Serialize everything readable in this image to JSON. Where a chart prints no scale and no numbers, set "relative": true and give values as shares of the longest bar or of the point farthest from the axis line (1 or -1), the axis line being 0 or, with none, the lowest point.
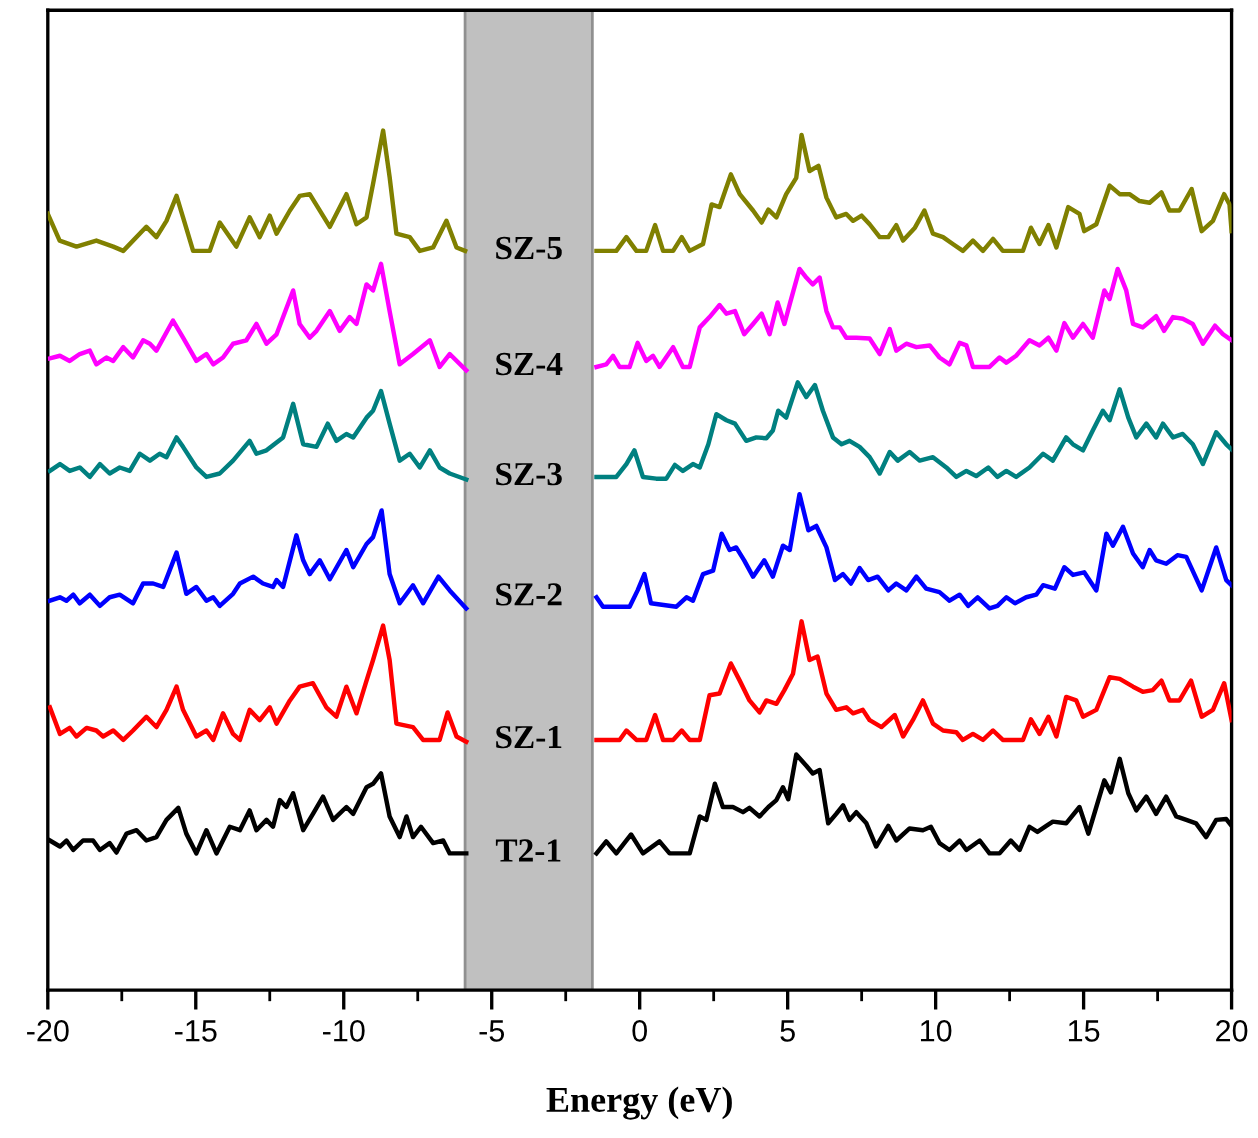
{
  "chart_data": {
    "type": "line",
    "relative": true,
    "xlabel": "Energy (eV)",
    "xlim": [
      -20,
      20
    ],
    "xticks": [
      -20,
      {
        "value": -17.5,
        "label": null
      },
      -15,
      {
        "value": -12.5,
        "label": null
      },
      -10,
      {
        "value": -7.5,
        "label": null
      },
      -5,
      {
        "value": -2.5,
        "label": null
      },
      0,
      {
        "value": 2.5,
        "label": null
      },
      5,
      {
        "value": 7.5,
        "label": null
      },
      10,
      {
        "value": 12.5,
        "label": null
      },
      15,
      {
        "value": 17.5,
        "label": null
      },
      20
    ],
    "grid": false,
    "legend": false,
    "marker": "none",
    "line_style": "solid",
    "bands": [
      {
        "axis": "x",
        "from": -5.9,
        "to": -1.6,
        "color": "#c0c0c0"
      }
    ],
    "series": [
      {
        "name": "SZ-5",
        "color": "#808000",
        "x": [
          -20.0,
          -19.6,
          -19.03,
          -18.36,
          -17.79,
          -17.45,
          -16.67,
          -16.33,
          -15.99,
          -15.65,
          -15.43,
          -15.09,
          -14.53,
          -14.19,
          -13.63,
          -13.18,
          -12.84,
          -12.5,
          -12.27,
          -11.82,
          -11.49,
          -11.15,
          -10.47,
          -9.91,
          -9.57,
          -9.23,
          -9.01,
          -8.67,
          -8.45,
          -8.22,
          -7.77,
          -7.43,
          -6.98,
          -6.53,
          -6.19,
          -5.9,
          -3.75,
          -1.46,
          -0.79,
          -0.45,
          -0.11,
          0.22,
          0.52,
          0.79,
          1.13,
          1.42,
          1.69,
          2.14,
          2.43,
          2.7,
          3.08,
          3.38,
          3.83,
          4.12,
          4.35,
          4.62,
          4.95,
          5.29,
          5.47,
          5.74,
          6.04,
          6.31,
          6.64,
          6.98,
          7.21,
          7.5,
          7.77,
          8.11,
          8.4,
          8.67,
          8.9,
          9.3,
          9.62,
          9.91,
          10.25,
          10.58,
          10.92,
          11.26,
          11.6,
          11.94,
          12.27,
          12.95,
          13.22,
          13.51,
          13.81,
          14.08,
          14.48,
          14.86,
          15.02,
          15.43,
          15.88,
          16.22,
          16.55,
          16.89,
          17.23,
          17.63,
          17.9,
          18.24,
          18.65,
          18.99,
          19.37,
          19.75,
          19.93,
          20.0
        ],
        "values": [
          0.903,
          0.872,
          0.865,
          0.872,
          0.865,
          0.86,
          0.888,
          0.876,
          0.895,
          0.924,
          0.899,
          0.86,
          0.86,
          0.893,
          0.865,
          0.899,
          0.876,
          0.901,
          0.88,
          0.907,
          0.924,
          0.926,
          0.888,
          0.926,
          0.891,
          0.899,
          0.938,
          1.0,
          0.946,
          0.88,
          0.876,
          0.86,
          0.864,
          0.895,
          0.864,
          0.86,
          null,
          0.86,
          0.86,
          0.876,
          0.86,
          0.86,
          0.89,
          0.86,
          0.86,
          0.876,
          0.86,
          0.868,
          0.914,
          0.911,
          0.949,
          0.926,
          0.907,
          0.893,
          0.908,
          0.899,
          0.926,
          0.945,
          0.995,
          0.953,
          0.959,
          0.922,
          0.899,
          0.903,
          0.895,
          0.901,
          0.891,
          0.876,
          0.876,
          0.89,
          0.872,
          0.887,
          0.907,
          0.88,
          0.876,
          0.868,
          0.86,
          0.872,
          0.86,
          0.874,
          0.86,
          0.86,
          0.887,
          0.868,
          0.89,
          0.864,
          0.911,
          0.903,
          0.883,
          0.891,
          0.936,
          0.926,
          0.926,
          0.918,
          0.916,
          0.928,
          0.907,
          0.907,
          0.932,
          0.883,
          0.895,
          0.926,
          0.914,
          0.883
        ]
      },
      {
        "name": "SZ-4",
        "color": "#ff00ff",
        "x": [
          -19.93,
          -19.59,
          -19.26,
          -18.92,
          -18.58,
          -18.36,
          -18.02,
          -17.79,
          -17.45,
          -17.12,
          -16.78,
          -16.55,
          -16.33,
          -15.77,
          -15.43,
          -14.98,
          -14.64,
          -14.41,
          -14.08,
          -13.74,
          -13.29,
          -12.95,
          -12.61,
          -12.27,
          -11.71,
          -11.49,
          -11.15,
          -10.92,
          -10.47,
          -10.14,
          -9.8,
          -9.57,
          -9.23,
          -9.01,
          -8.74,
          -8.45,
          -8.11,
          -7.66,
          -7.09,
          -6.76,
          -6.42,
          -5.86,
          -3.75,
          -1.46,
          -1.13,
          -0.9,
          -0.68,
          -0.34,
          -0.07,
          0.22,
          0.45,
          0.67,
          1.13,
          1.46,
          1.69,
          2.03,
          2.36,
          2.7,
          2.93,
          3.22,
          3.53,
          3.83,
          4.12,
          4.39,
          4.66,
          4.89,
          5.07,
          5.4,
          5.63,
          5.85,
          6.08,
          6.31,
          6.53,
          6.76,
          6.98,
          7.32,
          7.77,
          8.11,
          8.45,
          8.67,
          9.01,
          9.35,
          9.8,
          10.13,
          10.47,
          10.81,
          11.04,
          11.26,
          11.82,
          12.16,
          12.39,
          12.72,
          13.17,
          13.51,
          13.81,
          14.08,
          14.35,
          14.64,
          14.98,
          15.31,
          15.7,
          15.88,
          16.15,
          16.44,
          16.67,
          17.0,
          17.45,
          17.72,
          18.02,
          18.35,
          18.69,
          19.03,
          19.44,
          19.71,
          20.0
        ],
        "values": [
          0.735,
          0.738,
          0.732,
          0.74,
          0.744,
          0.728,
          0.736,
          0.732,
          0.748,
          0.736,
          0.756,
          0.752,
          0.744,
          0.779,
          0.759,
          0.732,
          0.74,
          0.728,
          0.736,
          0.752,
          0.756,
          0.775,
          0.752,
          0.763,
          0.814,
          0.775,
          0.759,
          0.767,
          0.79,
          0.767,
          0.783,
          0.775,
          0.821,
          0.814,
          0.845,
          0.79,
          0.728,
          0.74,
          0.756,
          0.725,
          0.74,
          0.721,
          null,
          0.725,
          0.728,
          0.738,
          0.725,
          0.725,
          0.753,
          0.732,
          0.738,
          0.725,
          0.748,
          0.725,
          0.725,
          0.771,
          0.783,
          0.797,
          0.787,
          0.79,
          0.763,
          0.775,
          0.787,
          0.763,
          0.8,
          0.775,
          0.798,
          0.839,
          0.829,
          0.821,
          0.829,
          0.79,
          0.771,
          0.771,
          0.759,
          0.759,
          0.758,
          0.74,
          0.769,
          0.744,
          0.752,
          0.748,
          0.75,
          0.736,
          0.728,
          0.753,
          0.75,
          0.725,
          0.725,
          0.736,
          0.73,
          0.738,
          0.756,
          0.75,
          0.759,
          0.744,
          0.776,
          0.759,
          0.775,
          0.759,
          0.814,
          0.804,
          0.839,
          0.814,
          0.775,
          0.771,
          0.784,
          0.767,
          0.783,
          0.781,
          0.775,
          0.752,
          0.773,
          0.763,
          0.756
        ]
      },
      {
        "name": "SZ-3",
        "color": "#008080",
        "x": [
          -19.93,
          -19.59,
          -19.26,
          -18.92,
          -18.58,
          -18.24,
          -17.91,
          -17.57,
          -17.23,
          -16.89,
          -16.55,
          -16.22,
          -15.99,
          -15.65,
          -15.43,
          -14.98,
          -14.64,
          -14.19,
          -13.74,
          -13.18,
          -12.95,
          -12.61,
          -12.05,
          -11.71,
          -11.37,
          -10.92,
          -10.54,
          -10.25,
          -9.91,
          -9.68,
          -9.23,
          -9.01,
          -8.74,
          -8.45,
          -8.11,
          -7.77,
          -7.43,
          -7.09,
          -6.76,
          -6.42,
          -5.86,
          -3.75,
          -1.46,
          -0.79,
          -0.45,
          -0.18,
          0.11,
          0.56,
          0.9,
          1.19,
          1.46,
          1.8,
          2.03,
          2.32,
          2.59,
          2.93,
          3.22,
          3.6,
          3.94,
          4.28,
          4.5,
          4.68,
          4.95,
          5.34,
          5.63,
          5.92,
          6.19,
          6.53,
          6.82,
          7.09,
          7.43,
          7.77,
          8.11,
          8.45,
          8.72,
          9.12,
          9.46,
          9.91,
          10.36,
          10.7,
          11.04,
          11.37,
          11.78,
          12.09,
          12.39,
          12.72,
          13.17,
          13.63,
          13.96,
          14.41,
          14.64,
          14.98,
          15.31,
          15.65,
          15.88,
          16.22,
          16.51,
          16.78,
          17.12,
          17.45,
          17.68,
          18.02,
          18.35,
          18.69,
          19.03,
          19.48,
          19.82,
          20.0
        ],
        "values": [
          0.604,
          0.612,
          0.604,
          0.608,
          0.597,
          0.612,
          0.601,
          0.608,
          0.604,
          0.624,
          0.616,
          0.624,
          0.62,
          0.643,
          0.632,
          0.608,
          0.597,
          0.601,
          0.616,
          0.639,
          0.624,
          0.628,
          0.643,
          0.682,
          0.635,
          0.632,
          0.659,
          0.639,
          0.647,
          0.643,
          0.666,
          0.674,
          0.697,
          0.659,
          0.616,
          0.624,
          0.608,
          0.628,
          0.608,
          0.601,
          0.594,
          null,
          0.597,
          0.597,
          0.612,
          0.628,
          0.597,
          0.595,
          0.595,
          0.611,
          0.604,
          0.612,
          0.608,
          0.635,
          0.67,
          0.663,
          0.659,
          0.639,
          0.643,
          0.642,
          0.651,
          0.674,
          0.666,
          0.707,
          0.69,
          0.704,
          0.674,
          0.643,
          0.635,
          0.639,
          0.632,
          0.62,
          0.601,
          0.626,
          0.616,
          0.626,
          0.616,
          0.62,
          0.608,
          0.597,
          0.604,
          0.598,
          0.608,
          0.597,
          0.604,
          0.597,
          0.608,
          0.624,
          0.616,
          0.643,
          0.635,
          0.628,
          0.651,
          0.674,
          0.663,
          0.699,
          0.666,
          0.643,
          0.659,
          0.643,
          0.659,
          0.643,
          0.647,
          0.635,
          0.612,
          0.649,
          0.635,
          0.629
        ]
      },
      {
        "name": "SZ-2",
        "color": "#0000ff",
        "x": [
          -19.93,
          -19.59,
          -19.37,
          -19.14,
          -18.92,
          -18.58,
          -18.24,
          -17.91,
          -17.57,
          -17.12,
          -16.78,
          -16.44,
          -16.1,
          -15.65,
          -15.32,
          -14.98,
          -14.64,
          -14.41,
          -14.19,
          -13.74,
          -13.51,
          -13.06,
          -12.73,
          -12.39,
          -12.27,
          -12.05,
          -11.6,
          -11.37,
          -11.15,
          -10.81,
          -10.47,
          -9.91,
          -9.68,
          -9.23,
          -9.01,
          -8.72,
          -8.45,
          -8.11,
          -7.66,
          -7.32,
          -6.8,
          -6.42,
          -5.86,
          -3.75,
          -1.46,
          -1.24,
          -0.34,
          -0.07,
          0.16,
          0.38,
          1.24,
          1.58,
          1.8,
          2.14,
          2.48,
          2.77,
          3.04,
          3.26,
          3.53,
          3.83,
          4.21,
          4.5,
          4.84,
          5.07,
          5.4,
          5.7,
          5.97,
          6.31,
          6.6,
          6.87,
          7.14,
          7.43,
          7.72,
          8.04,
          8.4,
          8.67,
          9.01,
          9.35,
          9.68,
          10.13,
          10.47,
          10.81,
          11.1,
          11.42,
          11.82,
          12.09,
          12.39,
          12.68,
          13.06,
          13.4,
          13.63,
          14.03,
          14.35,
          14.64,
          15.02,
          15.43,
          15.77,
          15.99,
          16.33,
          16.67,
          17.0,
          17.23,
          17.45,
          17.79,
          18.17,
          18.47,
          18.99,
          19.48,
          19.82,
          20.0
        ],
        "values": [
          0.453,
          0.457,
          0.453,
          0.46,
          0.45,
          0.46,
          0.447,
          0.457,
          0.46,
          0.45,
          0.473,
          0.473,
          0.469,
          0.509,
          0.461,
          0.469,
          0.453,
          0.457,
          0.447,
          0.461,
          0.473,
          0.481,
          0.473,
          0.469,
          0.477,
          0.469,
          0.529,
          0.5,
          0.484,
          0.5,
          0.478,
          0.512,
          0.492,
          0.519,
          0.527,
          0.558,
          0.484,
          0.45,
          0.471,
          0.45,
          0.481,
          0.465,
          0.444,
          null,
          0.457,
          0.446,
          0.446,
          0.465,
          0.484,
          0.45,
          0.446,
          0.457,
          0.453,
          0.484,
          0.488,
          0.531,
          0.512,
          0.515,
          0.5,
          0.481,
          0.5,
          0.481,
          0.517,
          0.512,
          0.577,
          0.535,
          0.54,
          0.515,
          0.477,
          0.484,
          0.473,
          0.491,
          0.477,
          0.481,
          0.465,
          0.473,
          0.465,
          0.481,
          0.467,
          0.463,
          0.453,
          0.46,
          0.447,
          0.457,
          0.444,
          0.447,
          0.457,
          0.45,
          0.457,
          0.46,
          0.471,
          0.467,
          0.492,
          0.483,
          0.486,
          0.465,
          0.531,
          0.517,
          0.539,
          0.508,
          0.492,
          0.512,
          0.5,
          0.496,
          0.506,
          0.504,
          0.465,
          0.515,
          0.477,
          0.471
        ]
      },
      {
        "name": "SZ-1",
        "color": "#ff0000",
        "x": [
          -19.93,
          -19.59,
          -19.26,
          -19.03,
          -18.69,
          -18.36,
          -18.13,
          -17.79,
          -17.45,
          -17.12,
          -16.67,
          -16.33,
          -15.99,
          -15.65,
          -15.43,
          -14.98,
          -14.64,
          -14.41,
          -14.08,
          -13.74,
          -13.51,
          -13.18,
          -12.84,
          -12.5,
          -12.27,
          -11.82,
          -11.49,
          -11.04,
          -10.59,
          -10.25,
          -9.91,
          -9.57,
          -9.23,
          -9.01,
          -8.67,
          -8.45,
          -8.22,
          -7.66,
          -7.32,
          -6.76,
          -6.49,
          -6.19,
          -5.86,
          -3.75,
          -1.46,
          -0.68,
          -0.45,
          -0.11,
          0.22,
          0.52,
          0.79,
          1.13,
          1.42,
          1.69,
          2.03,
          2.36,
          2.7,
          3.08,
          3.38,
          3.71,
          4.05,
          4.28,
          4.62,
          4.89,
          5.18,
          5.47,
          5.74,
          6.01,
          6.31,
          6.64,
          6.98,
          7.21,
          7.54,
          7.77,
          8.17,
          8.62,
          8.9,
          9.23,
          9.57,
          9.91,
          10.25,
          10.7,
          10.92,
          11.26,
          11.6,
          11.94,
          12.27,
          12.95,
          13.22,
          13.51,
          13.81,
          14.08,
          14.41,
          14.75,
          14.98,
          15.43,
          15.88,
          16.22,
          16.67,
          17.0,
          17.34,
          17.63,
          17.9,
          18.24,
          18.63,
          18.99,
          19.37,
          19.75,
          20.0
        ],
        "values": [
          0.329,
          0.298,
          0.305,
          0.295,
          0.305,
          0.302,
          0.295,
          0.302,
          0.291,
          0.302,
          0.318,
          0.306,
          0.326,
          0.353,
          0.326,
          0.295,
          0.302,
          0.291,
          0.322,
          0.298,
          0.291,
          0.326,
          0.314,
          0.329,
          0.31,
          0.337,
          0.353,
          0.357,
          0.329,
          0.318,
          0.353,
          0.322,
          0.36,
          0.384,
          0.424,
          0.384,
          0.31,
          0.306,
          0.291,
          0.291,
          0.323,
          0.295,
          0.289,
          null,
          0.291,
          0.291,
          0.302,
          0.291,
          0.291,
          0.32,
          0.291,
          0.291,
          0.302,
          0.291,
          0.291,
          0.343,
          0.345,
          0.38,
          0.36,
          0.337,
          0.323,
          0.337,
          0.333,
          0.349,
          0.368,
          0.429,
          0.384,
          0.388,
          0.345,
          0.326,
          0.329,
          0.322,
          0.326,
          0.314,
          0.306,
          0.32,
          0.295,
          0.314,
          0.337,
          0.31,
          0.302,
          0.3,
          0.291,
          0.298,
          0.291,
          0.302,
          0.291,
          0.291,
          0.315,
          0.298,
          0.318,
          0.295,
          0.341,
          0.337,
          0.318,
          0.326,
          0.364,
          0.362,
          0.353,
          0.347,
          0.349,
          0.36,
          0.337,
          0.337,
          0.36,
          0.318,
          0.326,
          0.357,
          0.314
        ]
      },
      {
        "name": "T2-1",
        "color": "#000000",
        "x": [
          -19.93,
          -19.59,
          -19.37,
          -19.14,
          -18.81,
          -18.47,
          -18.24,
          -17.91,
          -17.68,
          -17.34,
          -17.0,
          -16.67,
          -16.33,
          -15.99,
          -15.59,
          -15.32,
          -14.98,
          -14.64,
          -14.3,
          -13.85,
          -13.51,
          -13.18,
          -12.95,
          -12.61,
          -12.39,
          -12.16,
          -11.94,
          -11.71,
          -11.37,
          -11.04,
          -10.7,
          -10.36,
          -9.91,
          -9.68,
          -9.23,
          -9.01,
          -8.74,
          -8.45,
          -8.11,
          -7.88,
          -7.66,
          -7.39,
          -6.98,
          -6.64,
          -6.42,
          -5.86,
          -3.75,
          -1.46,
          -1.13,
          -0.79,
          -0.29,
          0.11,
          0.67,
          1.01,
          1.69,
          2.03,
          2.25,
          2.54,
          2.81,
          3.15,
          3.49,
          3.71,
          4.05,
          4.35,
          4.62,
          4.84,
          5.02,
          5.29,
          5.63,
          5.85,
          6.08,
          6.37,
          6.64,
          6.87,
          7.09,
          7.32,
          7.66,
          7.99,
          8.4,
          8.67,
          9.12,
          9.57,
          9.84,
          10.13,
          10.47,
          10.81,
          11.04,
          11.49,
          11.82,
          12.16,
          12.54,
          12.84,
          13.17,
          13.44,
          13.74,
          13.96,
          14.41,
          14.86,
          15.16,
          15.43,
          15.7,
          15.92,
          16.22,
          16.51,
          16.78,
          17.12,
          17.45,
          17.79,
          18.13,
          18.47,
          18.8,
          19.14,
          19.48,
          19.82,
          20.0
        ],
        "values": [
          0.174,
          0.167,
          0.174,
          0.163,
          0.174,
          0.174,
          0.163,
          0.171,
          0.16,
          0.182,
          0.186,
          0.174,
          0.178,
          0.198,
          0.212,
          0.182,
          0.159,
          0.186,
          0.159,
          0.19,
          0.186,
          0.209,
          0.186,
          0.198,
          0.19,
          0.221,
          0.213,
          0.229,
          0.186,
          0.205,
          0.225,
          0.198,
          0.213,
          0.205,
          0.236,
          0.24,
          0.252,
          0.202,
          0.178,
          0.202,
          0.178,
          0.19,
          0.171,
          0.174,
          0.159,
          0.159,
          null,
          0.159,
          0.173,
          0.159,
          0.181,
          0.159,
          0.173,
          0.159,
          0.159,
          0.202,
          0.198,
          0.24,
          0.213,
          0.213,
          0.207,
          0.212,
          0.202,
          0.213,
          0.221,
          0.236,
          0.222,
          0.274,
          0.261,
          0.252,
          0.256,
          0.194,
          0.205,
          0.215,
          0.198,
          0.207,
          0.194,
          0.167,
          0.191,
          0.174,
          0.188,
          0.186,
          0.19,
          0.171,
          0.163,
          0.174,
          0.163,
          0.174,
          0.159,
          0.159,
          0.174,
          0.163,
          0.19,
          0.184,
          0.191,
          0.196,
          0.194,
          0.213,
          0.182,
          0.213,
          0.244,
          0.23,
          0.269,
          0.229,
          0.209,
          0.225,
          0.205,
          0.225,
          0.202,
          0.198,
          0.194,
          0.178,
          0.198,
          0.199,
          0.191
        ]
      }
    ]
  }
}
